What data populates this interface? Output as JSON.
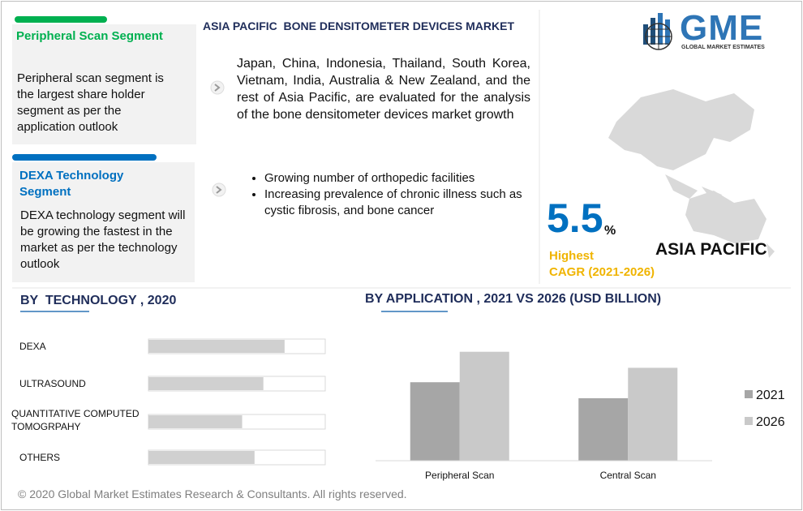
{
  "header": {
    "title": "ASIA PACIFIC  BONE DENSITOMETER DEVICES MARKET"
  },
  "logo": {
    "name": "GME",
    "tagline": "GLOBAL MARKET ESTIMATES"
  },
  "segments": [
    {
      "title": "Peripheral Scan Segment",
      "text": "Peripheral scan segment is the largest share holder segment as per the application outlook"
    },
    {
      "title": "DEXA Technology Segment",
      "text": "DEXA technology segment will be growing the fastest in the market as per the technology outlook"
    }
  ],
  "intro": "Japan, China, Indonesia, Thailand, South Korea, Vietnam, India, Australia & New Zealand, and the rest of Asia Pacific, are evaluated for the analysis of the bone densitometer devices market growth",
  "drivers": [
    "Growing number of orthopedic facilities",
    "Increasing prevalence of chronic illness such as cystic fibrosis, and bone cancer"
  ],
  "cagr": {
    "value": "5.5",
    "unit": "%",
    "label1": "Highest",
    "label2": "CAGR (2021-2026)",
    "region": "ASIA PACIFIC"
  },
  "footer": "© 2020 Global Market Estimates Research & Consultants. All rights reserved.",
  "chart_data": [
    {
      "type": "hbar",
      "title": "BY  TECHNOLOGY , 2020",
      "categories": [
        "DEXA",
        "ULTRASOUND",
        "QUANTITATIVE COMPUTED TOMOGRPAHY",
        "OTHERS"
      ],
      "values": [
        77,
        65,
        53,
        60
      ],
      "xlim": [
        0,
        100
      ],
      "color": "#d0d0d0"
    },
    {
      "type": "bar",
      "title": "BY APPLICATION , 2021 VS 2026 (USD BILLION)",
      "categories": [
        "Peripheral Scan",
        "Central Scan"
      ],
      "series": [
        {
          "name": "2021",
          "color": "#a6a6a6",
          "values": [
            98,
            78
          ]
        },
        {
          "name": "2026",
          "color": "#c9c9c9",
          "values": [
            136,
            116
          ]
        }
      ],
      "ylim": [
        0,
        160
      ]
    }
  ]
}
